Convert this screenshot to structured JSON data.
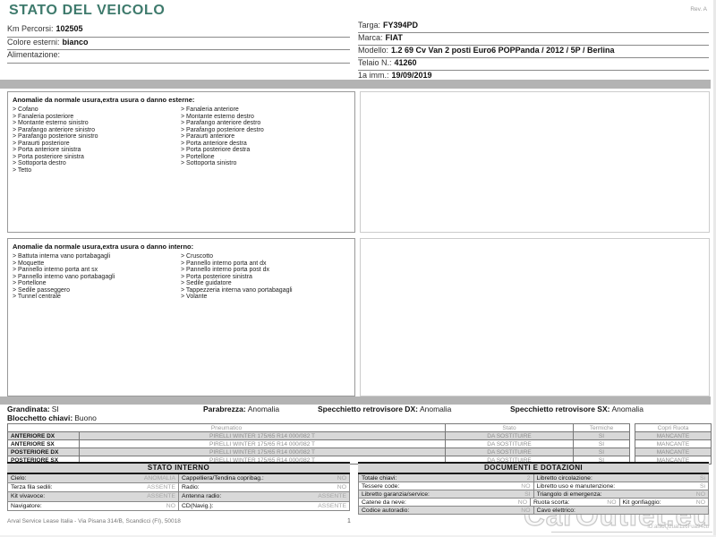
{
  "header": {
    "title": "STATO DEL VEICOLO",
    "rev": "Rev. A"
  },
  "vehicle": {
    "left_fields": [
      {
        "label": "Km Percorsi:",
        "value": "102505"
      },
      {
        "label": "Colore esterni:",
        "value": "bianco"
      },
      {
        "label": "Alimentazione:",
        "value": ""
      }
    ],
    "right_fields": [
      {
        "label": "Targa:",
        "value": "FY394PD"
      },
      {
        "label": "Marca:",
        "value": "FIAT"
      },
      {
        "label": "Modello:",
        "value": "1.2 69 Cv Van 2 posti Euro6 POPPanda / 2012 / 5P / Berlina"
      },
      {
        "label": "Telaio N.:",
        "value": "41260"
      },
      {
        "label": "1a imm.:",
        "value": "19/09/2019"
      }
    ]
  },
  "external_anomalies": {
    "title": "Anomalie da normale usura,extra usura o danno esterne:",
    "col1": [
      "Cofano",
      "Fanaleria posteriore",
      "Montante esterno sinistro",
      "Parafango anteriore sinistro",
      "Parafango posteriore sinistro",
      "Paraurti posteriore",
      "Porta anteriore sinistra",
      "Porta posteriore sinistra",
      "Sottoporta destro",
      "Tetto"
    ],
    "col2": [
      "Fanaleria anteriore",
      "Montante esterno destro",
      "Parafango anteriore destro",
      "Parafango posteriore destro",
      "Paraurti anteriore",
      "Porta anteriore destra",
      "Porta posteriore destra",
      "Portellone",
      "Sottoporta sinistro"
    ]
  },
  "internal_anomalies": {
    "title": "Anomalie da normale usura,extra usura o danno interno:",
    "col1": [
      "Battuta interna vano portabagagli",
      "Moquette",
      "Pannello interno porta ant sx",
      "Pannello interno vano portabagagli",
      "Portellone",
      "Sedile passeggero",
      "Tunnel centrale"
    ],
    "col2": [
      "Cruscotto",
      "Pannello interno porta ant dx",
      "Pannello interno porta post dx",
      "Porta posteriore sinistra",
      "Sedile guidatore",
      "Tappezzeria interna vano portabagagli",
      "Volante"
    ]
  },
  "condition": {
    "grandinata": {
      "label": "Grandinata:",
      "value": "SI"
    },
    "parabrezza": {
      "label": "Parabrezza:",
      "value": "Anomalia"
    },
    "specchietto_dx": {
      "label": "Specchietto retrovisore DX:",
      "value": "Anomalia"
    },
    "specchietto_sx": {
      "label": "Specchietto retrovisore SX:",
      "value": "Anomalia"
    },
    "blocchetto_chiavi": {
      "label": "Blocchetto chiavi:",
      "value": "Buono"
    }
  },
  "tyres": {
    "headers": [
      "Pneumatico",
      "Stato",
      "Termiche",
      "Copri Ruota"
    ],
    "rows": [
      {
        "position": "ANTERIORE DX",
        "tyre": "PIRELLI WINTER 175/65 R14 000/082 T",
        "state": "DA SOSTITUIRE",
        "thermal": "SI",
        "cover": "MANCANTE"
      },
      {
        "position": "ANTERIORE SX",
        "tyre": "PIRELLI WINTER 175/65 R14 000/082 T",
        "state": "DA SOSTITUIRE",
        "thermal": "SI",
        "cover": "MANCANTE"
      },
      {
        "position": "POSTERIORE DX",
        "tyre": "PIRELLI WINTER 175/65 R14 000/082 T",
        "state": "DA SOSTITUIRE",
        "thermal": "SI",
        "cover": "MANCANTE"
      },
      {
        "position": "POSTERIORE SX",
        "tyre": "PIRELLI WINTER 175/65 R14 000/082 T",
        "state": "DA SOSTITUIRE",
        "thermal": "SI",
        "cover": "MANCANTE"
      }
    ]
  },
  "stato_interno": {
    "title": "STATO INTERNO",
    "rows": [
      [
        {
          "label": "Cielo:",
          "value": "ANOMALIA"
        },
        {
          "label": "Cappelliera/Tendina copribag.:",
          "value": "NO"
        }
      ],
      [
        {
          "label": "Terza fila sedili:",
          "value": "ASSENTE"
        },
        {
          "label": "Radio:",
          "value": "NO"
        }
      ],
      [
        {
          "label": "Kit vivavoce:",
          "value": "ASSENTE"
        },
        {
          "label": "Antenna radio:",
          "value": "ASSENTE"
        }
      ],
      [
        {
          "label": "Navigatore:",
          "value": "NO"
        },
        {
          "label": "CD(Navig.):",
          "value": "ASSENTE"
        }
      ]
    ]
  },
  "documenti": {
    "title": "DOCUMENTI E DOTAZIONI",
    "rows": [
      [
        {
          "label": "Totale chiavi:",
          "value": "2"
        },
        {
          "label": "Libretto circolazione:",
          "value": "Si"
        }
      ],
      [
        {
          "label": "Tessere code:",
          "value": "NO"
        },
        {
          "label": "Libretto uso e manutenzione:",
          "value": "Si"
        }
      ],
      [
        {
          "label": "Libretto garanzia/service:",
          "value": "SI"
        },
        {
          "label": "Triangolo di emergenza:",
          "value": "NO"
        }
      ],
      [
        {
          "label": "Catene da neve:",
          "value": "NO"
        },
        {
          "label": "Ruota scorta:",
          "value": "NO"
        },
        {
          "label": "Kit gonfiaggio:",
          "value": "NO"
        }
      ],
      [
        {
          "label": "Codice autoradio:",
          "value": "NO"
        },
        {
          "label": "Cavo elettrico:",
          "value": ""
        }
      ]
    ]
  },
  "footer": {
    "address": "Arval Service Lease Italia - Via Pisana 314/B, Scandicci (FI), 50018",
    "page_number": "1",
    "watermark": "CarOutlet.eu",
    "doc_id": "ID:af9bQ2uaf1z6Fua94cu"
  },
  "colors": {
    "title_accent": "#3e7a6c",
    "divider_gray": "#b3b3b3",
    "row_gray": "#d9d9d9"
  }
}
